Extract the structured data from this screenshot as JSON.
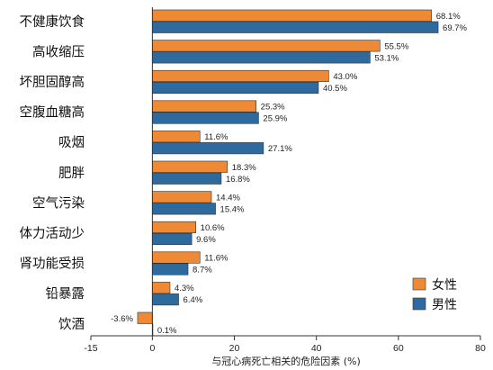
{
  "chart_data": {
    "type": "bar",
    "orientation": "horizontal",
    "categories": [
      "不健康饮食",
      "高收缩压",
      "坏胆固醇高",
      "空腹血糖高",
      "吸烟",
      "肥胖",
      "空气污染",
      "体力活动少",
      "肾功能受损",
      "铅暴露",
      "饮酒"
    ],
    "series": [
      {
        "name": "女性",
        "color": "#ee8a35",
        "values": [
          68.1,
          55.5,
          43.0,
          25.3,
          11.6,
          18.3,
          14.4,
          10.6,
          11.6,
          4.3,
          -3.6
        ],
        "labels": [
          "68.1%",
          "55.5%",
          "43.0%",
          "25.3%",
          "11.6%",
          "18.3%",
          "14.4%",
          "10.6%",
          "11.6%",
          "4.3%",
          "-3.6%"
        ]
      },
      {
        "name": "男性",
        "color": "#2e6a9e",
        "values": [
          69.7,
          53.1,
          40.5,
          25.9,
          27.1,
          16.8,
          15.4,
          9.6,
          8.7,
          6.4,
          0.1
        ],
        "labels": [
          "69.7%",
          "53.1%",
          "40.5%",
          "25.9%",
          "27.1%",
          "16.8%",
          "15.4%",
          "9.6%",
          "8.7%",
          "6.4%",
          "0.1%"
        ]
      }
    ],
    "xlabel": "与冠心病死亡相关的危险因素 (%)",
    "xlim": [
      -15,
      80
    ],
    "xticks": [
      "-15",
      "0",
      "20",
      "40",
      "60",
      "80"
    ],
    "xtick_values": [
      -15,
      0,
      20,
      40,
      60,
      80
    ],
    "grid": false,
    "legend_position": "bottom-right"
  }
}
